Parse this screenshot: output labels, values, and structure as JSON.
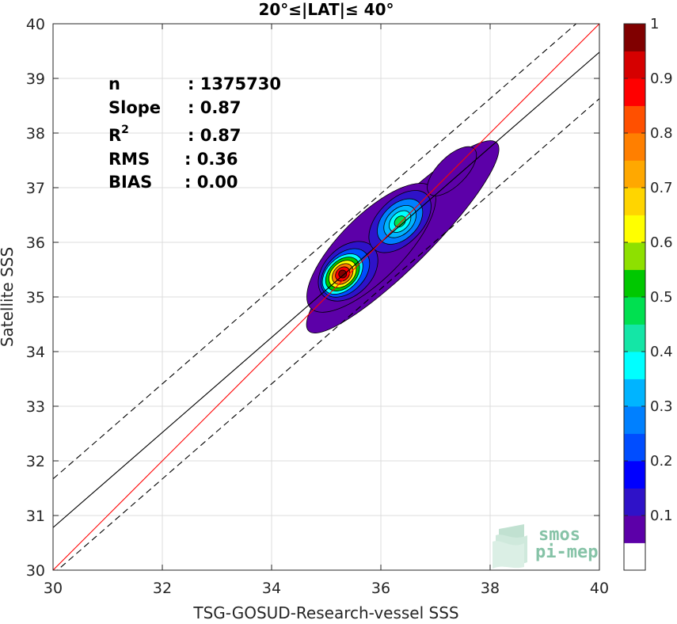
{
  "chart_data": {
    "type": "scatter",
    "title": "20°≤|LAT|≤ 40°",
    "xlabel": "TSG-GOSUD-Research-vessel SSS",
    "ylabel": "Satellite SSS",
    "xlim": [
      30,
      40
    ],
    "ylim": [
      30,
      40
    ],
    "xticks": [
      "30",
      "32",
      "34",
      "36",
      "38",
      "40"
    ],
    "yticks": [
      "30",
      "31",
      "32",
      "33",
      "34",
      "35",
      "36",
      "37",
      "38",
      "39",
      "40"
    ],
    "grid": true,
    "stats": [
      {
        "label": "n",
        "value": ": 1375730"
      },
      {
        "label": "Slope",
        "value": ": 0.87"
      },
      {
        "label": "R",
        "sup": "2",
        "value": ": 0.87"
      },
      {
        "label": "RMS",
        "value": ": 0.36"
      },
      {
        "label": "BIAS",
        "value": ": 0.00"
      }
    ],
    "lines": {
      "identity": {
        "x": [
          30,
          40
        ],
        "y": [
          30,
          40
        ],
        "color": "#ff0000"
      },
      "fit": {
        "x": [
          30,
          40
        ],
        "y": [
          30.78,
          39.48
        ],
        "color": "#000000"
      },
      "fit_plus_band": {
        "x": [
          30,
          40
        ],
        "y": [
          31.67,
          40.37
        ],
        "color": "#000000"
      },
      "fit_minus_band": {
        "x": [
          30,
          40
        ],
        "y": [
          29.93,
          38.63
        ],
        "color": "#000000"
      }
    },
    "density_peaks": [
      {
        "x": 35.3,
        "y": 35.42,
        "value": 1.0
      },
      {
        "x": 36.35,
        "y": 36.38,
        "value": 0.5
      },
      {
        "x": 37.3,
        "y": 37.3,
        "value": 0.15
      }
    ],
    "colorbar": {
      "range": [
        0,
        1
      ],
      "ticks": [
        "0.1",
        "0.2",
        "0.3",
        "0.4",
        "0.5",
        "0.6",
        "0.7",
        "0.8",
        "0.9",
        "1"
      ],
      "colors": [
        "#ffffff",
        "#5c00a8",
        "#2f12c8",
        "#0000ff",
        "#004dff",
        "#0080ff",
        "#00b4ff",
        "#00ffff",
        "#14e6a6",
        "#00e050",
        "#00c800",
        "#8ee000",
        "#ffff00",
        "#ffd500",
        "#ffa800",
        "#ff7f00",
        "#ff5000",
        "#ff0000",
        "#d60000",
        "#800000"
      ]
    }
  },
  "logo": {
    "line1": "smos",
    "line2": "pi-mep"
  }
}
